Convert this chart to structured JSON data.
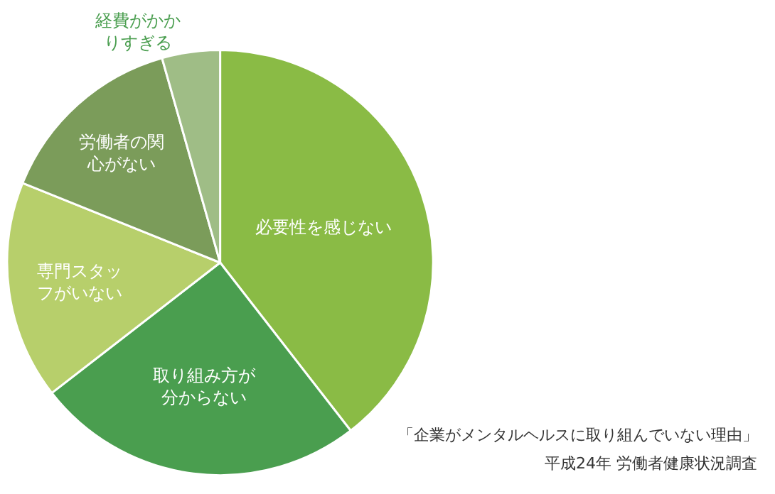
{
  "chart_data": {
    "type": "pie",
    "categories": [
      "必要性を感じない",
      "取り組み方が分からない",
      "専門スタッフがいない",
      "労働者の関心がない",
      "経費がかかりすぎる"
    ],
    "values": [
      39.5,
      25,
      16.6,
      14.5,
      4.4
    ],
    "colors": [
      "#8abb45",
      "#4a9e4f",
      "#b7cf6b",
      "#7b9c5a",
      "#9fbd86"
    ],
    "annotations": [
      "「企業がメンタルヘルスに取り組んでいない理由」",
      "平成24年 労働者健康状況調査"
    ]
  }
}
